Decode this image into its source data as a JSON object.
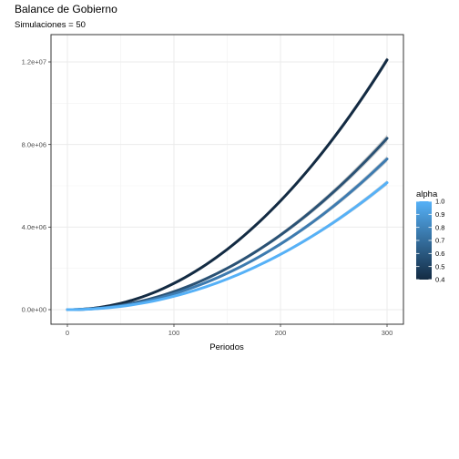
{
  "chart_data": {
    "type": "line",
    "title": "Balance de Gobierno",
    "subtitle": "Simulaciones = 50",
    "xlabel": "Periodos",
    "ylabel": "",
    "xlim": [
      0,
      300
    ],
    "ylim": [
      0,
      12300000
    ],
    "x_ticks": [
      0,
      100,
      200,
      300
    ],
    "x_tick_labels": [
      "0",
      "100",
      "200",
      "300"
    ],
    "y_ticks": [
      0,
      4000000,
      8000000,
      12000000
    ],
    "y_tick_labels": [
      "0.0e+00",
      "4.0e+06",
      "8.0e+06",
      "1.2e+07"
    ],
    "grid": true,
    "theme": "bw",
    "series": [
      {
        "alpha": 0.4,
        "final_value": 12100000,
        "band": 150000,
        "color": "#132b43"
      },
      {
        "alpha": 0.6,
        "final_value": 8300000,
        "band": 180000,
        "color": "#2a5275"
      },
      {
        "alpha": 0.8,
        "final_value": 7300000,
        "band": 150000,
        "color": "#3d7bb0"
      },
      {
        "alpha": 1.0,
        "final_value": 6150000,
        "band": 120000,
        "color": "#56b1f7"
      }
    ],
    "legend": {
      "title": "alpha",
      "position": "right",
      "min": 0.4,
      "max": 1.0,
      "labels": [
        "1.0",
        "0.9",
        "0.8",
        "0.7",
        "0.6",
        "0.5",
        "0.4"
      ],
      "values": [
        1.0,
        0.9,
        0.8,
        0.7,
        0.6,
        0.5,
        0.4
      ],
      "color_low": "#132b43",
      "color_high": "#56b1f7"
    }
  }
}
